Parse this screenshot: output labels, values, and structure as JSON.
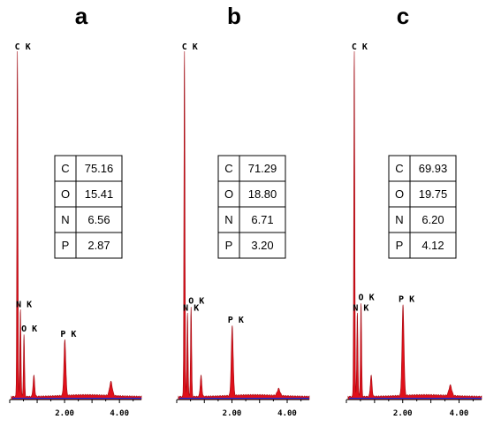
{
  "chart_data": [
    {
      "type": "area",
      "panel_label": "a",
      "x_ticks": [
        2.0,
        4.0
      ],
      "x_tick_labels": [
        "2.00",
        "4.00"
      ],
      "xlim": [
        0,
        4.8
      ],
      "peaks": [
        {
          "label": "C K",
          "x": 0.28,
          "y": 100
        },
        {
          "label": "N K",
          "x": 0.39,
          "y": 25
        },
        {
          "label": "O K",
          "x": 0.52,
          "y": 18
        },
        {
          "label": "",
          "x": 0.88,
          "y": 6
        },
        {
          "label": "P K",
          "x": 2.01,
          "y": 16
        },
        {
          "label": "",
          "x": 3.69,
          "y": 4
        }
      ],
      "table": [
        [
          "C",
          "75.16"
        ],
        [
          "O",
          "15.41"
        ],
        [
          "N",
          "6.56"
        ],
        [
          "P",
          "2.87"
        ]
      ]
    },
    {
      "type": "area",
      "panel_label": "b",
      "x_ticks": [
        2.0,
        4.0
      ],
      "x_tick_labels": [
        "2.00",
        "4.00"
      ],
      "xlim": [
        0,
        4.8
      ],
      "peaks": [
        {
          "label": "C K",
          "x": 0.28,
          "y": 100
        },
        {
          "label": "N K",
          "x": 0.39,
          "y": 24
        },
        {
          "label": "O K",
          "x": 0.52,
          "y": 26
        },
        {
          "label": "",
          "x": 0.88,
          "y": 6
        },
        {
          "label": "P K",
          "x": 2.01,
          "y": 20
        },
        {
          "label": "",
          "x": 3.69,
          "y": 2
        }
      ],
      "table": [
        [
          "C",
          "71.29"
        ],
        [
          "O",
          "18.80"
        ],
        [
          "N",
          "6.71"
        ],
        [
          "P",
          "3.20"
        ]
      ]
    },
    {
      "type": "area",
      "panel_label": "c",
      "x_ticks": [
        2.0,
        4.0
      ],
      "x_tick_labels": [
        "2.00",
        "4.00"
      ],
      "xlim": [
        0,
        4.8
      ],
      "peaks": [
        {
          "label": "C K",
          "x": 0.28,
          "y": 100
        },
        {
          "label": "N K",
          "x": 0.39,
          "y": 24
        },
        {
          "label": "O K",
          "x": 0.52,
          "y": 27
        },
        {
          "label": "",
          "x": 0.88,
          "y": 6
        },
        {
          "label": "P K",
          "x": 2.01,
          "y": 26
        },
        {
          "label": "",
          "x": 3.69,
          "y": 3
        }
      ],
      "table": [
        [
          "C",
          "69.93"
        ],
        [
          "O",
          "19.75"
        ],
        [
          "N",
          "6.20"
        ],
        [
          "P",
          "4.12"
        ]
      ]
    }
  ],
  "colors": {
    "fill": "#e0101a",
    "fill_dark": "#a00a12",
    "baseline": "#2b2bd6",
    "axis": "#000000"
  }
}
